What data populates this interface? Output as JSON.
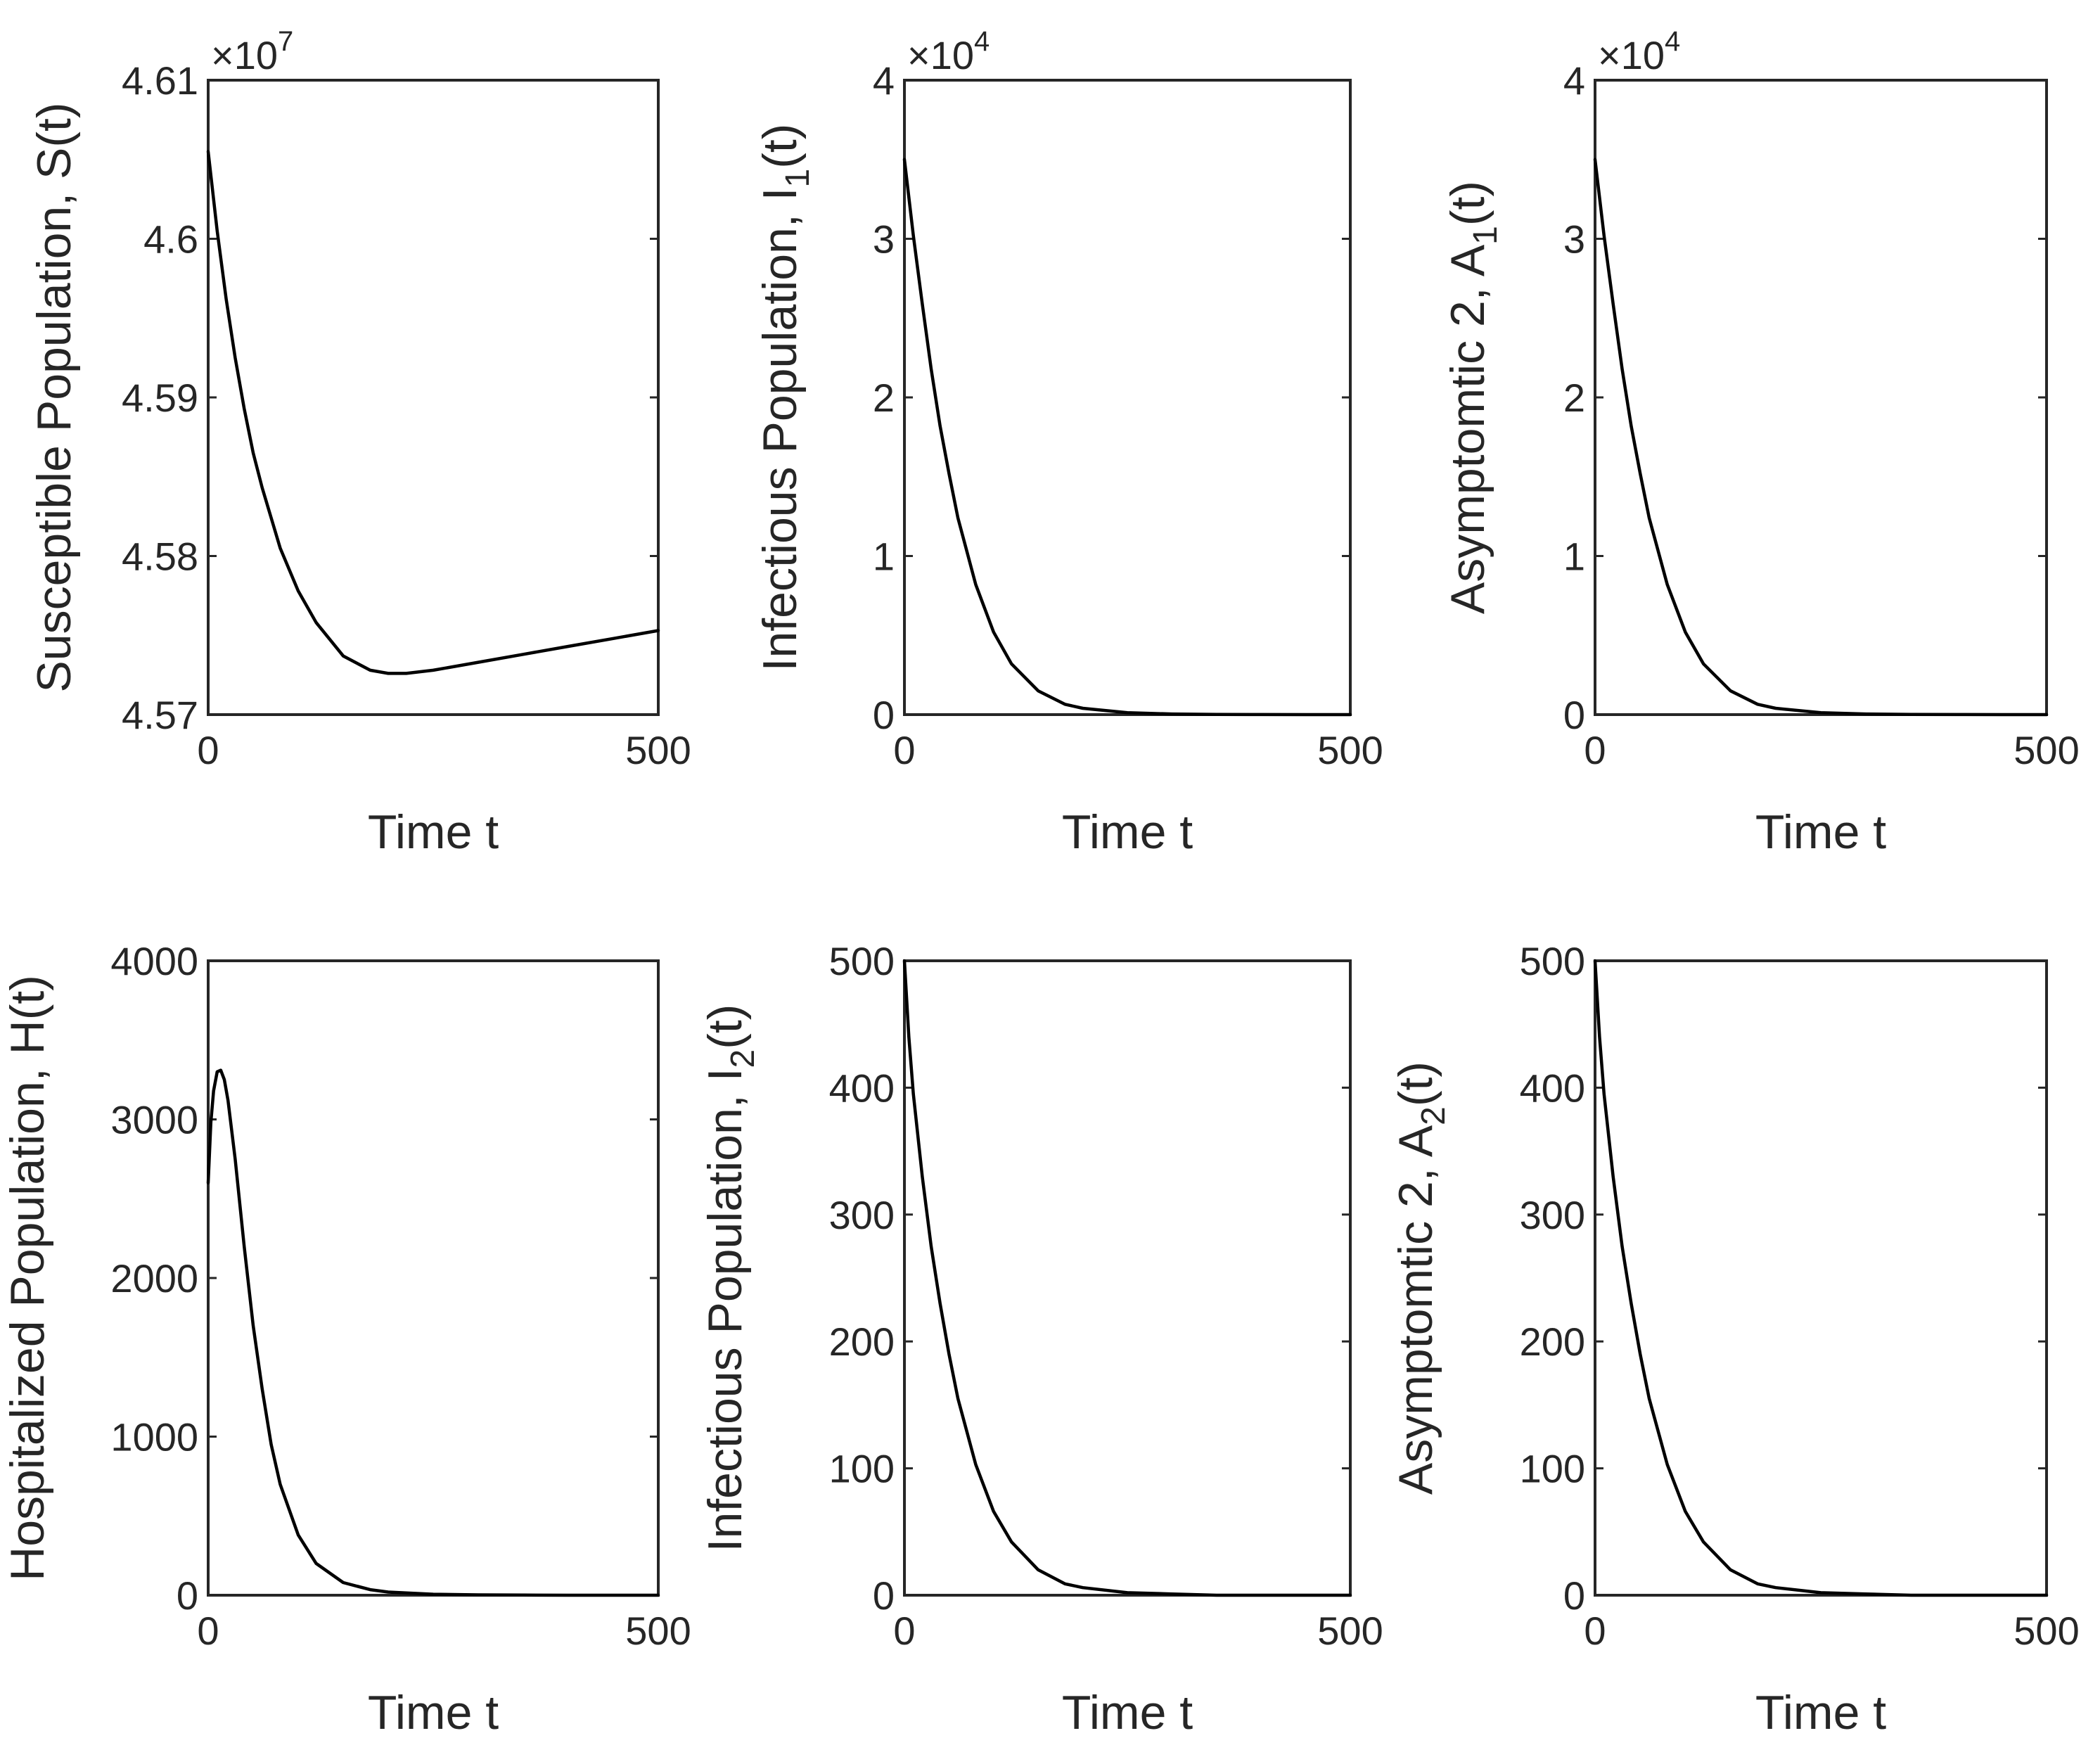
{
  "chart_data": [
    {
      "type": "line",
      "ylabel_parts": [
        "Susceptible Population, S(t)"
      ],
      "xlabel": "Time t",
      "xlim": [
        0,
        500
      ],
      "ylim": [
        4.57,
        4.61
      ],
      "xticks": [
        0,
        500
      ],
      "yticks": [
        4.57,
        4.58,
        4.59,
        4.6,
        4.61
      ],
      "ytick_labels": [
        "4.57",
        "4.58",
        "4.59",
        "4.6",
        "4.61"
      ],
      "exponent_base": "×10",
      "exponent": "7",
      "series": [
        {
          "name": "S(t)",
          "x": [
            0,
            10,
            20,
            30,
            40,
            50,
            60,
            80,
            100,
            120,
            150,
            180,
            200,
            220,
            250,
            300,
            350,
            400,
            450,
            500
          ],
          "y": [
            4.6055,
            4.6005,
            4.5962,
            4.5925,
            4.5893,
            4.5865,
            4.5843,
            4.5805,
            4.5778,
            4.5758,
            4.5737,
            4.5728,
            4.5726,
            4.5726,
            4.5728,
            4.5733,
            4.5738,
            4.5743,
            4.5748,
            4.5753
          ]
        }
      ]
    },
    {
      "type": "line",
      "ylabel_parts": [
        "Infectious Population, I",
        "1",
        "(t)"
      ],
      "xlabel": "Time t",
      "xlim": [
        0,
        500
      ],
      "ylim": [
        0,
        4
      ],
      "xticks": [
        0,
        500
      ],
      "yticks": [
        0,
        1,
        2,
        3,
        4
      ],
      "ytick_labels": [
        "0",
        "1",
        "2",
        "3",
        "4"
      ],
      "exponent_base": "×10",
      "exponent": "4",
      "series": [
        {
          "name": "I1(t)",
          "x": [
            0,
            10,
            20,
            30,
            40,
            50,
            60,
            80,
            100,
            120,
            150,
            180,
            200,
            250,
            300,
            350,
            400,
            450,
            500
          ],
          "y": [
            3.5,
            3.02,
            2.59,
            2.18,
            1.82,
            1.52,
            1.24,
            0.82,
            0.52,
            0.32,
            0.15,
            0.065,
            0.04,
            0.012,
            0.004,
            0.001,
            0.0005,
            0.0002,
            0.0001
          ]
        }
      ]
    },
    {
      "type": "line",
      "ylabel_parts": [
        "Asymptomtic 2, A",
        "1",
        "(t)"
      ],
      "xlabel": "Time t",
      "xlim": [
        0,
        500
      ],
      "ylim": [
        0,
        4
      ],
      "xticks": [
        0,
        500
      ],
      "yticks": [
        0,
        1,
        2,
        3,
        4
      ],
      "ytick_labels": [
        "0",
        "1",
        "2",
        "3",
        "4"
      ],
      "exponent_base": "×10",
      "exponent": "4",
      "series": [
        {
          "name": "A1(t)",
          "x": [
            0,
            10,
            20,
            30,
            40,
            50,
            60,
            80,
            100,
            120,
            150,
            180,
            200,
            250,
            300,
            350,
            400,
            450,
            500
          ],
          "y": [
            3.5,
            3.02,
            2.59,
            2.18,
            1.82,
            1.52,
            1.24,
            0.82,
            0.52,
            0.32,
            0.15,
            0.065,
            0.04,
            0.012,
            0.004,
            0.001,
            0.0005,
            0.0002,
            0.0001
          ]
        }
      ]
    },
    {
      "type": "line",
      "ylabel_parts": [
        "Hospitalized Population, H(t)"
      ],
      "xlabel": "Time t",
      "xlim": [
        0,
        500
      ],
      "ylim": [
        0,
        4000
      ],
      "xticks": [
        0,
        500
      ],
      "yticks": [
        0,
        1000,
        2000,
        3000,
        4000
      ],
      "ytick_labels": [
        "0",
        "1000",
        "2000",
        "3000",
        "4000"
      ],
      "exponent_base": "",
      "exponent": "",
      "series": [
        {
          "name": "H(t)",
          "x": [
            0,
            3,
            6,
            10,
            14,
            18,
            22,
            30,
            40,
            50,
            60,
            70,
            80,
            100,
            120,
            150,
            180,
            200,
            250,
            300,
            350,
            400,
            450,
            500
          ],
          "y": [
            2600,
            2980,
            3180,
            3300,
            3310,
            3250,
            3120,
            2750,
            2200,
            1700,
            1300,
            950,
            700,
            380,
            200,
            80,
            35,
            20,
            6,
            2,
            1,
            0,
            0,
            0
          ]
        }
      ]
    },
    {
      "type": "line",
      "ylabel_parts": [
        "Infectious Population, I",
        "2",
        "(t)"
      ],
      "xlabel": "Time t",
      "xlim": [
        0,
        500
      ],
      "ylim": [
        0,
        500
      ],
      "xticks": [
        0,
        500
      ],
      "yticks": [
        0,
        100,
        200,
        300,
        400,
        500
      ],
      "ytick_labels": [
        "0",
        "100",
        "200",
        "300",
        "400",
        "500"
      ],
      "exponent_base": "",
      "exponent": "",
      "series": [
        {
          "name": "I2(t)",
          "x": [
            0,
            5,
            10,
            20,
            30,
            40,
            50,
            60,
            80,
            100,
            120,
            150,
            180,
            200,
            250,
            300,
            350,
            400,
            450,
            500
          ],
          "y": [
            500,
            440,
            395,
            330,
            275,
            230,
            190,
            155,
            103,
            66,
            42,
            20,
            9,
            6,
            2,
            1,
            0,
            0,
            0,
            0
          ]
        }
      ]
    },
    {
      "type": "line",
      "ylabel_parts": [
        "Asymptomtic 2, A",
        "2",
        "(t)"
      ],
      "xlabel": "Time t",
      "xlim": [
        0,
        500
      ],
      "ylim": [
        0,
        500
      ],
      "xticks": [
        0,
        500
      ],
      "yticks": [
        0,
        100,
        200,
        300,
        400,
        500
      ],
      "ytick_labels": [
        "0",
        "100",
        "200",
        "300",
        "400",
        "500"
      ],
      "exponent_base": "",
      "exponent": "",
      "series": [
        {
          "name": "A2(t)",
          "x": [
            0,
            5,
            10,
            20,
            30,
            40,
            50,
            60,
            80,
            100,
            120,
            150,
            180,
            200,
            250,
            300,
            350,
            400,
            450,
            500
          ],
          "y": [
            500,
            440,
            395,
            330,
            275,
            230,
            190,
            155,
            103,
            66,
            42,
            20,
            9,
            6,
            2,
            1,
            0,
            0,
            0,
            0
          ]
        }
      ]
    }
  ]
}
